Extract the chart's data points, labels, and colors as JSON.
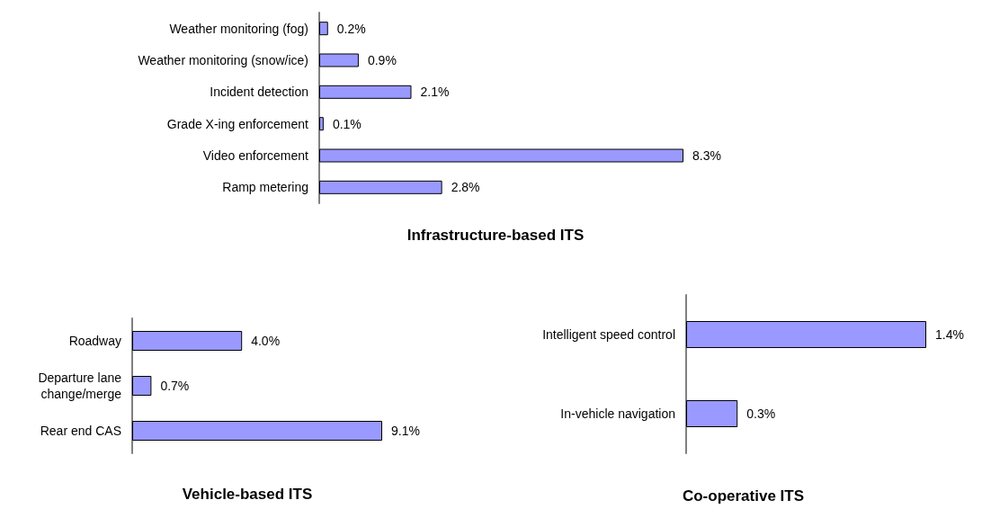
{
  "chart_data": [
    {
      "type": "bar",
      "orientation": "horizontal",
      "title": "Infrastructure-based ITS",
      "categories": [
        "Weather monitoring (fog)",
        "Weather monitoring (snow/ice)",
        "Incident detection",
        "Grade X-ing enforcement",
        "Video enforcement",
        "Ramp metering"
      ],
      "values": [
        0.2,
        0.9,
        2.1,
        0.1,
        8.3,
        2.8
      ],
      "value_labels": [
        "0.2%",
        "0.9%",
        "2.1%",
        "0.1%",
        "8.3%",
        "2.8%"
      ],
      "color": "#9999ff"
    },
    {
      "type": "bar",
      "orientation": "horizontal",
      "title": "Vehicle-based ITS",
      "categories": [
        "Roadway",
        "Departure lane\nchange/merge",
        "Rear end CAS"
      ],
      "values": [
        4.0,
        0.7,
        9.1
      ],
      "value_labels": [
        "4.0%",
        "0.7%",
        "9.1%"
      ],
      "color": "#9999ff"
    },
    {
      "type": "bar",
      "orientation": "horizontal",
      "title": "Co-operative ITS",
      "categories": [
        "Intelligent speed control",
        "In-vehicle navigation"
      ],
      "values": [
        1.4,
        0.3
      ],
      "value_labels": [
        "1.4%",
        "0.3%"
      ],
      "color": "#9999ff"
    }
  ]
}
